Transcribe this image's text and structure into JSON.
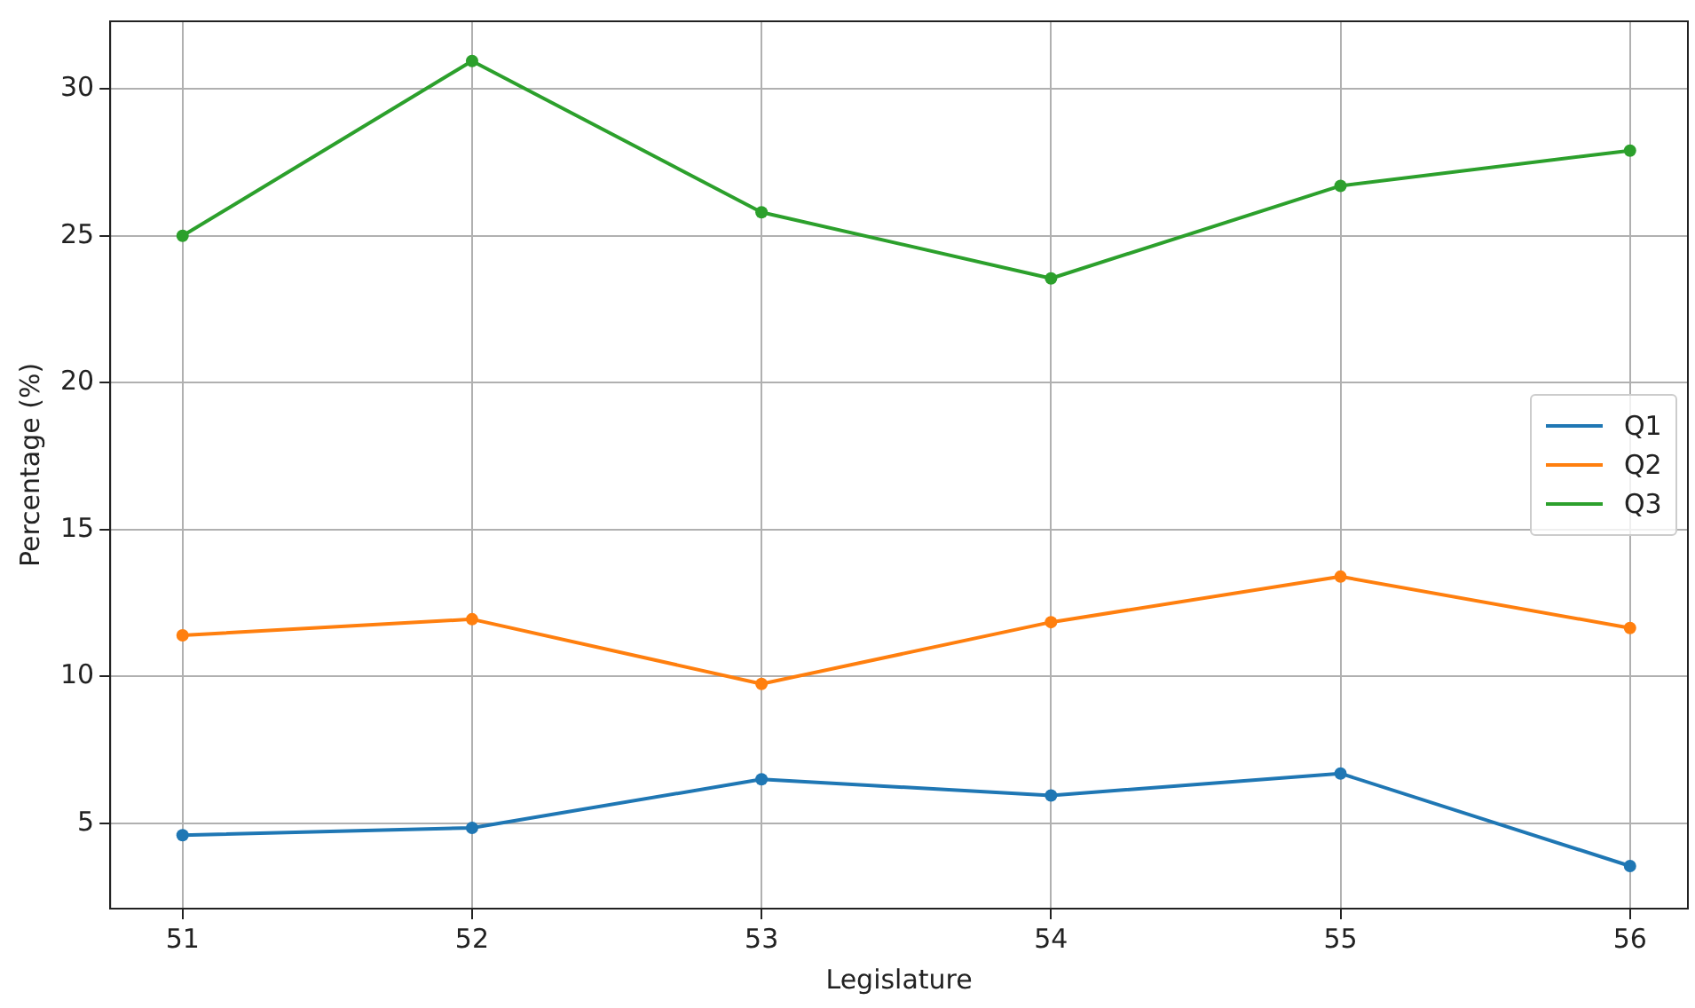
{
  "chart_data": {
    "type": "line",
    "xlabel": "Legislature",
    "ylabel": "Percentage (%)",
    "x": [
      51,
      52,
      53,
      54,
      55,
      56
    ],
    "series": [
      {
        "name": "Q1",
        "color": "#1f77b4",
        "values": [
          4.6,
          4.85,
          6.5,
          5.95,
          6.7,
          3.55
        ]
      },
      {
        "name": "Q2",
        "color": "#ff7f0e",
        "values": [
          11.4,
          11.95,
          9.75,
          11.85,
          13.4,
          11.65
        ]
      },
      {
        "name": "Q3",
        "color": "#2ca02c",
        "values": [
          25.0,
          30.95,
          25.8,
          23.55,
          26.7,
          27.9
        ]
      }
    ],
    "xlim": [
      50.75,
      56.2
    ],
    "xticks": [
      51,
      52,
      53,
      54,
      55,
      56
    ],
    "ylim": [
      2.1,
      32.3
    ],
    "yticks": [
      5,
      10,
      15,
      20,
      25,
      30
    ],
    "grid": true,
    "legend": "right",
    "marker": "circle",
    "line_style": "solid"
  }
}
